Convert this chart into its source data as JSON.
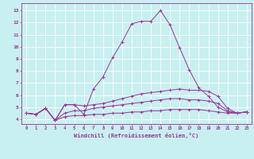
{
  "xlabel": "Windchill (Refroidissement éolien,°C)",
  "bg_color": "#c8f0f0",
  "line_color": "#993399",
  "grid_color": "#ffffff",
  "x_ticks": [
    0,
    1,
    2,
    3,
    4,
    5,
    6,
    7,
    8,
    9,
    10,
    11,
    12,
    13,
    14,
    15,
    16,
    17,
    18,
    19,
    20,
    21,
    22,
    23
  ],
  "y_ticks": [
    4,
    5,
    6,
    7,
    8,
    9,
    10,
    11,
    12,
    13
  ],
  "ylim": [
    3.6,
    13.6
  ],
  "xlim": [
    -0.5,
    23.5
  ],
  "series": [
    [
      4.5,
      4.4,
      4.9,
      3.9,
      5.2,
      5.2,
      4.4,
      6.5,
      7.5,
      9.1,
      10.4,
      11.9,
      12.1,
      12.1,
      13.0,
      11.8,
      9.9,
      8.1,
      6.6,
      5.9,
      5.0,
      4.6,
      4.5,
      4.6
    ],
    [
      4.5,
      4.4,
      4.9,
      3.9,
      5.2,
      5.2,
      5.1,
      5.2,
      5.3,
      5.5,
      5.7,
      5.9,
      6.1,
      6.2,
      6.3,
      6.4,
      6.5,
      6.4,
      6.4,
      6.3,
      5.9,
      4.9,
      4.5,
      4.6
    ],
    [
      4.5,
      4.4,
      4.9,
      3.9,
      4.5,
      4.7,
      4.7,
      4.9,
      5.0,
      5.1,
      5.2,
      5.3,
      5.4,
      5.5,
      5.6,
      5.7,
      5.7,
      5.6,
      5.6,
      5.5,
      5.3,
      4.7,
      4.5,
      4.6
    ],
    [
      4.5,
      4.4,
      4.9,
      3.9,
      4.2,
      4.3,
      4.3,
      4.4,
      4.4,
      4.5,
      4.5,
      4.6,
      4.6,
      4.7,
      4.7,
      4.8,
      4.8,
      4.8,
      4.8,
      4.7,
      4.6,
      4.5,
      4.5,
      4.6
    ]
  ]
}
